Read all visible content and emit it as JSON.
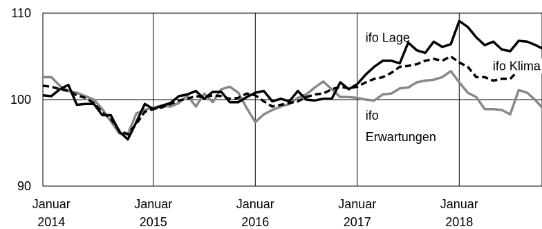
{
  "chart_data": {
    "type": "line",
    "title": "",
    "xlabel": "",
    "ylabel": "",
    "ylim": [
      90,
      110
    ],
    "xlim": [
      "2013-12",
      "2019-01"
    ],
    "grid": true,
    "legend": "none",
    "x_ticks": [
      {
        "date": "2014-01",
        "label_line1": "Januar",
        "label_line2": "2014"
      },
      {
        "date": "2015-01",
        "label_line1": "Januar",
        "label_line2": "2015"
      },
      {
        "date": "2016-01",
        "label_line1": "Januar",
        "label_line2": "2016"
      },
      {
        "date": "2017-01",
        "label_line1": "Januar",
        "label_line2": "2017"
      },
      {
        "date": "2018-01",
        "label_line1": "Januar",
        "label_line2": "2018"
      }
    ],
    "y_ticks": [
      {
        "value": 90,
        "label": "90"
      },
      {
        "value": 100,
        "label": "100"
      },
      {
        "value": 110,
        "label": "110"
      }
    ],
    "x": [
      "2013-12",
      "2014-01",
      "2014-02",
      "2014-03",
      "2014-04",
      "2014-05",
      "2014-06",
      "2014-07",
      "2014-08",
      "2014-09",
      "2014-10",
      "2014-11",
      "2014-12",
      "2015-01",
      "2015-02",
      "2015-03",
      "2015-04",
      "2015-05",
      "2015-06",
      "2015-07",
      "2015-08",
      "2015-09",
      "2015-10",
      "2015-11",
      "2015-12",
      "2016-01",
      "2016-02",
      "2016-03",
      "2016-04",
      "2016-05",
      "2016-06",
      "2016-07",
      "2016-08",
      "2016-09",
      "2016-10",
      "2016-11",
      "2016-12",
      "2017-01",
      "2017-02",
      "2017-03",
      "2017-04",
      "2017-05",
      "2017-06",
      "2017-07",
      "2017-08",
      "2017-09",
      "2017-10",
      "2017-11",
      "2017-12",
      "2018-01",
      "2018-02",
      "2018-03",
      "2018-04",
      "2018-05",
      "2018-06",
      "2018-07",
      "2018-08",
      "2018-09",
      "2018-10",
      "2018-11",
      "2018-12"
    ],
    "series": [
      {
        "name": "ifo Lage",
        "color": "#000000",
        "style": "solid",
        "values": [
          100.5,
          100.4,
          101.2,
          101.7,
          99.4,
          99.5,
          99.5,
          98.2,
          98.2,
          96.3,
          95.4,
          97.4,
          99.5,
          98.9,
          99.3,
          99.6,
          100.4,
          100.6,
          101.0,
          100.1,
          100.9,
          100.9,
          99.7,
          99.7,
          100.3,
          100.8,
          101.0,
          99.8,
          100.1,
          99.8,
          101.0,
          100.0,
          99.9,
          100.1,
          100.1,
          102.0,
          101.2,
          101.8,
          102.9,
          103.8,
          104.5,
          104.5,
          104.2,
          106.6,
          105.7,
          105.4,
          106.7,
          106.1,
          106.4,
          109.1,
          108.4,
          107.2,
          106.3,
          106.7,
          105.8,
          105.6,
          106.8,
          106.7,
          106.3,
          105.8,
          105.0
        ]
      },
      {
        "name": "ifo Klima",
        "color": "#000000",
        "style": "dashed",
        "values": [
          101.6,
          101.5,
          101.2,
          101.0,
          100.5,
          100.2,
          99.6,
          98.5,
          97.8,
          96.4,
          96.0,
          97.2,
          98.6,
          98.9,
          99.1,
          99.5,
          99.9,
          100.1,
          100.4,
          100.3,
          100.5,
          100.4,
          100.1,
          100.2,
          100.7,
          100.5,
          99.8,
          99.2,
          99.4,
          99.6,
          99.8,
          100.3,
          100.6,
          100.7,
          101.2,
          101.5,
          101.3,
          101.5,
          102.0,
          102.4,
          102.6,
          103.1,
          103.8,
          103.9,
          104.1,
          104.5,
          104.7,
          104.5,
          105.0,
          104.3,
          103.8,
          102.6,
          102.6,
          102.2,
          102.4,
          102.4,
          103.4,
          103.8,
          103.7,
          103.2,
          101.6
        ]
      },
      {
        "name": "ifo Erwartungen",
        "color": "#888888",
        "style": "solid",
        "values": [
          102.6,
          102.6,
          101.6,
          101.0,
          100.8,
          100.4,
          100.0,
          98.9,
          97.5,
          96.1,
          96.0,
          98.4,
          98.8,
          99.1,
          99.3,
          99.2,
          99.6,
          100.5,
          99.2,
          100.7,
          99.7,
          101.2,
          101.5,
          100.8,
          99.0,
          97.4,
          98.3,
          98.8,
          99.2,
          99.5,
          100.2,
          100.6,
          101.4,
          102.1,
          101.2,
          100.3,
          100.3,
          100.2,
          100.0,
          99.9,
          100.6,
          100.7,
          101.3,
          101.4,
          102.0,
          102.2,
          102.3,
          102.6,
          103.3,
          102.0,
          100.8,
          100.3,
          98.9,
          98.9,
          98.8,
          98.3,
          101.1,
          100.8,
          99.9,
          98.8,
          97.7
        ]
      }
    ],
    "annotations": [
      {
        "name": "annotation-ifo-lage",
        "text": "ifo Lage",
        "anchor_date": "2017-01",
        "anchor_value": 106.7
      },
      {
        "name": "annotation-ifo-klima",
        "text": "ifo Klima",
        "anchor_date": "2018-03",
        "anchor_value": 103.4
      },
      {
        "name": "annotation-ifo-erwartungen-1",
        "text": "ifo",
        "anchor_date": "2017-01",
        "anchor_value": 97.7
      },
      {
        "name": "annotation-ifo-erwartungen-2",
        "text": "Erwartungen",
        "anchor_date": "2017-01",
        "anchor_value": 95.2
      }
    ]
  }
}
